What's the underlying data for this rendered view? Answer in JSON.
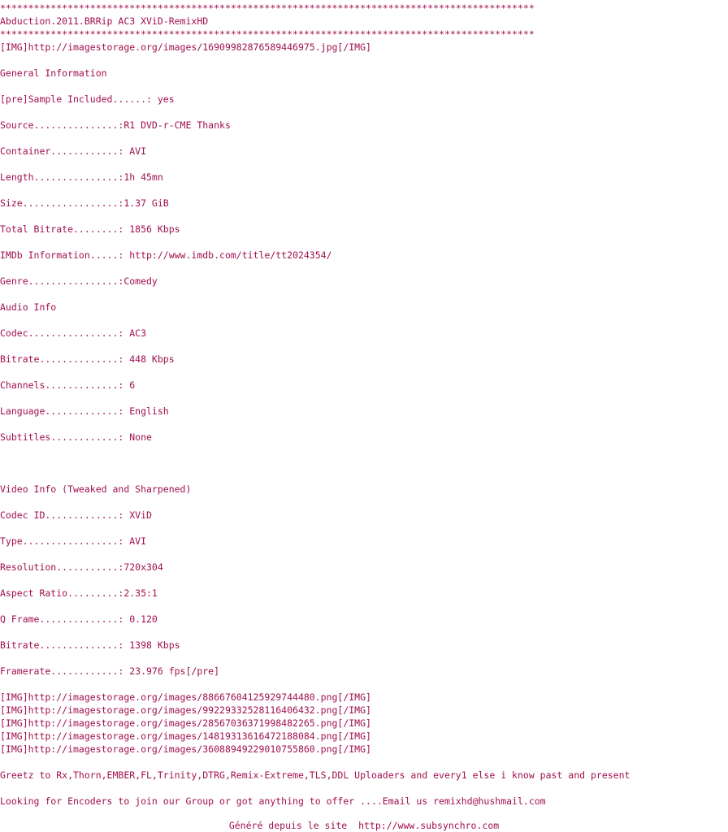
{
  "lines": [
    "***********************************************************************************************",
    "Abduction.2011.BRRip AC3 XViD-RemixHD",
    "***********************************************************************************************",
    "[IMG]http://imagestorage.org/images/1690998287658944 6975.jpg[/IMG]",
    "",
    "General Information",
    "",
    "[pre]Sample Included......: yes",
    "",
    "Source...............:R1 DVD-r-CME Thanks",
    "",
    "Container............: AVI",
    "",
    "Length...............:1h 45mn",
    "",
    "Size.................:1.37 GiB",
    "",
    "Total Bitrate........: 1 856 Kbps",
    "",
    "IMDb Information.....: http://www.imdb.com/title/tt2024354/",
    "",
    "Genre................:Comedy",
    "",
    "Audio Info",
    "",
    "Codec................: AC3",
    "",
    "Bitrate..............: 448 Kbps",
    "",
    "Channels.............: 6",
    "",
    "Language.............: English",
    "",
    "Subtitles............: None",
    "",
    "",
    "",
    "Video Info (Tweaked and Sharpened)",
    "",
    "Codec ID.............: XViD",
    "",
    "Type.................: AVI",
    "",
    "Resolution...........:720x304",
    "",
    "Aspect Ratio.........:2.35:1",
    "",
    "Q Frame..............: 0.120",
    "",
    "Bitrate..............: 1 398 Kbps",
    "",
    "Framerate............: 23.976 fps[/pre]",
    "",
    "[IMG]http://imagestorage.org/images/886676041259297444 80.png[/IMG]",
    "[IMG]http://imagestorage.org/images/992293325281164064 32.png[/IMG]",
    "[IMG]http://imagestorage.org/images/285670363719984822 65.png[/IMG]",
    "[IMG]http://imagestorage.org/images/148193136164721880 84.png[/IMG]",
    "[IMG]http://imagestorage.org/images/360889492290107558 60.png[/IMG]",
    "",
    "Greetz to Rx,Thorn,EMBER,FL,Trinity,DTRG,Remix-Extreme,TLS,DDL Uploaders and every1 else i know past and present",
    "",
    "Looking for Encoders to join our Group or got anything to offer ....Email us remixhd@hushmail.com"
  ],
  "footer": "Généré depuis le site  http://www.subsynchro.com"
}
